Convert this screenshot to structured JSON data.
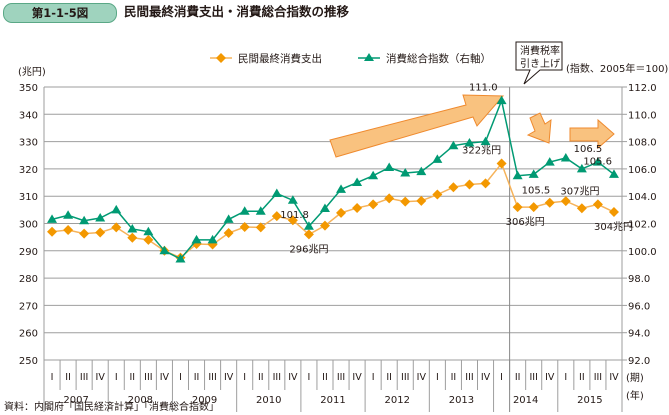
{
  "header": {
    "figure_number": "第1-1-5図",
    "title": "民間最終消費支出・消費総合指数の推移"
  },
  "source": "資料：内閣府「国民経済計算」「消費総合指数」",
  "colors": {
    "consumption": "#f39800",
    "consumption_line": "#f6b35a",
    "index": "#009a73",
    "arrow_fill": "#f9c27f",
    "arrow_stroke": "#ef8a2e",
    "grid": "#9e9e9e"
  },
  "chart_data": {
    "type": "line",
    "title": "民間最終消費支出・消費総合指数の推移",
    "left_axis_unit": "(兆円)",
    "right_axis_unit": "(指数、2005年＝100)",
    "x_period_unit": "(期)",
    "x_year_unit": "(年)",
    "ylim_left": [
      250,
      350
    ],
    "yticks_left": [
      "250",
      "260",
      "270",
      "280",
      "290",
      "300",
      "310",
      "320",
      "330",
      "340",
      "350"
    ],
    "ylim_right": [
      92.0,
      112.0
    ],
    "yticks_right": [
      "92.0",
      "94.0",
      "96.0",
      "98.0",
      "100.0",
      "102.0",
      "104.0",
      "106.0",
      "108.0",
      "110.0",
      "112.0"
    ],
    "grid": true,
    "legend_position": "top",
    "quarters": [
      "I",
      "II",
      "III",
      "IV"
    ],
    "years": [
      "2007",
      "2008",
      "2009",
      "2010",
      "2011",
      "2012",
      "2013",
      "2014",
      "2015"
    ],
    "series": [
      {
        "name": "民間最終消費支出",
        "axis": "left",
        "marker": "diamond",
        "values": [
          297.0,
          297.6,
          296.3,
          296.7,
          298.6,
          294.8,
          294.0,
          290.0,
          287.5,
          292.5,
          292.3,
          296.5,
          298.7,
          298.6,
          302.7,
          301.2,
          296.0,
          299.2,
          303.9,
          305.7,
          307.0,
          309.2,
          308.0,
          308.3,
          310.6,
          313.3,
          314.3,
          314.7,
          322.0,
          306.0,
          306.0,
          307.6,
          308.2,
          305.6,
          307.0,
          304.2
        ]
      },
      {
        "name": "消費総合指数（右軸）",
        "axis": "right",
        "marker": "triangle",
        "values": [
          102.3,
          102.6,
          102.2,
          102.4,
          103.0,
          101.6,
          101.4,
          100.0,
          99.4,
          100.8,
          100.8,
          102.3,
          102.9,
          102.9,
          104.2,
          103.7,
          101.8,
          103.1,
          104.5,
          105.0,
          105.5,
          106.1,
          105.7,
          105.8,
          106.7,
          107.7,
          107.9,
          108.0,
          111.0,
          105.5,
          105.6,
          106.5,
          106.8,
          106.0,
          106.5,
          105.6
        ]
      }
    ],
    "annotations": [
      {
        "text": "296兆円",
        "series": 0,
        "index": 16
      },
      {
        "text": "101.8",
        "series": 1,
        "index": 16
      },
      {
        "text": "322兆円",
        "series": 0,
        "index": 28
      },
      {
        "text": "111.0",
        "series": 1,
        "index": 28
      },
      {
        "text": "105.5",
        "series": 1,
        "index": 29
      },
      {
        "text": "306兆円",
        "series": 0,
        "index": 29
      },
      {
        "text": "106.5",
        "series": 1,
        "index": 34
      },
      {
        "text": "105.6",
        "series": 1,
        "index": 35
      },
      {
        "text": "307兆円",
        "series": 0,
        "index": 34
      },
      {
        "text": "304兆円",
        "series": 0,
        "index": 35
      }
    ],
    "event_marker": {
      "label_line1": "消費税率",
      "label_line2": "引き上げ",
      "after_index": 28
    }
  }
}
